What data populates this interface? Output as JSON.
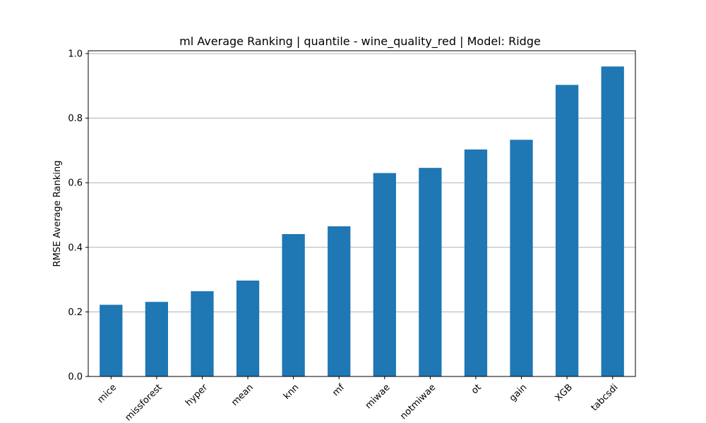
{
  "chart_data": {
    "type": "bar",
    "title": "ml Average Ranking | quantile - wine_quality_red | Model: Ridge",
    "xlabel": "",
    "ylabel": "RMSE Average Ranking",
    "categories": [
      "mice",
      "missforest",
      "hyper",
      "mean",
      "knn",
      "mf",
      "miwae",
      "notmiwae",
      "ot",
      "gain",
      "XGB",
      "tabcsdi"
    ],
    "values": [
      0.222,
      0.231,
      0.264,
      0.297,
      0.441,
      0.465,
      0.63,
      0.646,
      0.703,
      0.733,
      0.903,
      0.96
    ],
    "ylim": [
      0,
      1.0
    ],
    "yticks": [
      "0.0",
      "0.2",
      "0.4",
      "0.6",
      "0.8",
      "1.0"
    ],
    "grid": "y",
    "bar_color": "#1f77b4"
  }
}
